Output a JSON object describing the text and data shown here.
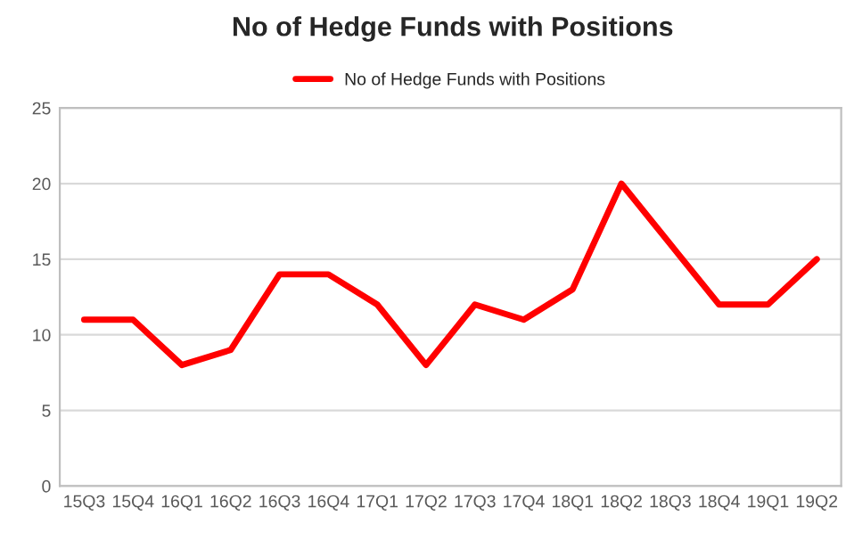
{
  "chart_data": {
    "type": "line",
    "title": "No of Hedge Funds with Positions",
    "categories": [
      "15Q3",
      "15Q4",
      "16Q1",
      "16Q2",
      "16Q3",
      "16Q4",
      "17Q1",
      "17Q2",
      "17Q3",
      "17Q4",
      "18Q1",
      "18Q2",
      "18Q3",
      "18Q4",
      "19Q1",
      "19Q2"
    ],
    "series": [
      {
        "name": "No of Hedge Funds with Positions",
        "color": "#ff0000",
        "values": [
          11,
          11,
          8,
          9,
          14,
          14,
          12,
          8,
          12,
          11,
          13,
          20,
          16,
          12,
          12,
          15
        ]
      }
    ],
    "ylim": [
      0,
      25
    ],
    "yticks": [
      0,
      5,
      10,
      15,
      20,
      25
    ],
    "grid": "y",
    "legend": "top",
    "marker": "none",
    "line_style": "solid"
  }
}
